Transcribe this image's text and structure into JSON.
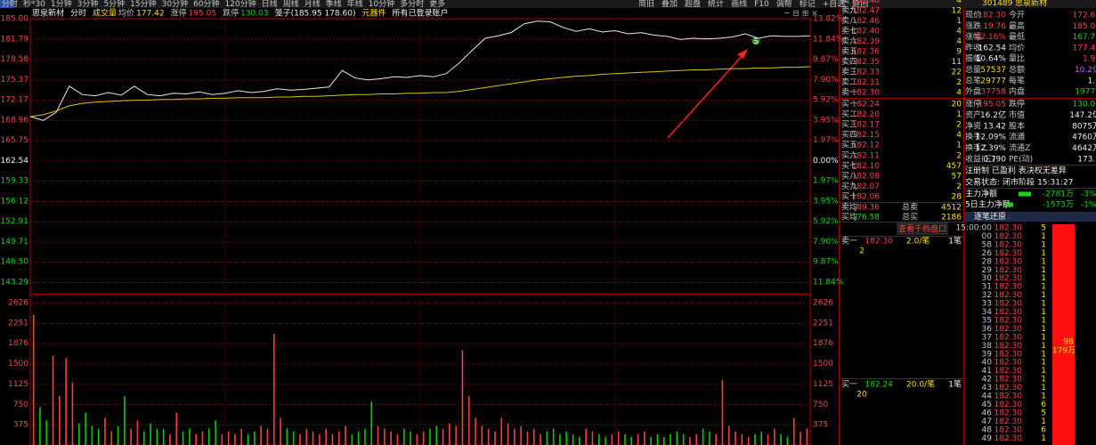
{
  "toolbar": {
    "tabs": [
      "分时",
      "秒*30",
      "1分钟",
      "3分钟",
      "5分钟",
      "15分钟",
      "30分钟",
      "60分钟",
      "120分钟",
      "日线",
      "周线",
      "月线",
      "季线",
      "年线",
      "10分钟",
      "多分时",
      "更多"
    ],
    "buttons": [
      "简旧",
      "叠加",
      "超盘",
      "统计",
      "画线",
      "F10",
      "调帮",
      "标记",
      "+自选",
      "返回"
    ]
  },
  "chart_header": {
    "stock": "思泉新材",
    "mode": "分时",
    "volume_label": "成交量",
    "avg_label": "均价",
    "avg": "177.42",
    "up_label": "涨停",
    "up": "195.05",
    "down_label": "跌停",
    "down": "130.03",
    "cage": "笼子(185.95 178.60)",
    "sector": "元器件",
    "account": "所有已登录账户"
  },
  "chart_data": [
    {
      "type": "line",
      "signal": "S",
      "series": [
        {
          "color": "#e8e8e8",
          "values": [
            169.5,
            168.9,
            170.2,
            174.3,
            173.0,
            172.8,
            173.3,
            172.9,
            174.3,
            173.0,
            172.8,
            173.2,
            173.1,
            173.4,
            173.0,
            173.2,
            173.6,
            173.3,
            173.5,
            173.9,
            173.7,
            173.8,
            174.0,
            174.2,
            176.8,
            175.6,
            175.3,
            175.5,
            175.8,
            175.7,
            176.0,
            175.8,
            176.3,
            178.0,
            180.0,
            181.9,
            182.3,
            182.8,
            184.2,
            184.6,
            184.5,
            183.6,
            183.0,
            183.4,
            182.9,
            183.1,
            182.6,
            182.8,
            182.4,
            182.2,
            181.7,
            181.9,
            181.8,
            181.9,
            182.1,
            182.6,
            181.9,
            182.3,
            182.2,
            182.2,
            182.3
          ]
        },
        {
          "color": "#d8c800",
          "values": [
            169.5,
            169.8,
            170.4,
            171.2,
            171.6,
            171.8,
            171.9,
            172.0,
            172.1,
            172.1,
            172.2,
            172.2,
            172.3,
            172.3,
            172.4,
            172.4,
            172.5,
            172.5,
            172.5,
            172.6,
            172.6,
            172.7,
            172.7,
            172.8,
            172.9,
            173.0,
            173.0,
            173.1,
            173.1,
            173.2,
            173.2,
            173.3,
            173.3,
            173.5,
            173.8,
            174.1,
            174.4,
            174.7,
            175.0,
            175.3,
            175.5,
            175.7,
            175.9,
            176.0,
            176.2,
            176.3,
            176.4,
            176.5,
            176.6,
            176.7,
            176.8,
            176.9,
            176.9,
            177.0,
            177.1,
            177.1,
            177.2,
            177.2,
            177.3,
            177.3,
            177.4
          ]
        }
      ],
      "ylim": [
        141.46,
        185.0
      ],
      "yticks": [
        {
          "value": 185.0,
          "label": "185.00"
        },
        181.79,
        178.58,
        175.37,
        172.17,
        168.96,
        165.75,
        162.54,
        159.33,
        156.12,
        152.91,
        149.71,
        {
          "value": 146.5,
          "label": "146.50"
        },
        143.29
      ],
      "y2lim": [
        -12.97,
        13.82
      ],
      "y2ticks": [
        {
          "value": 13.82,
          "label": "13.82%"
        },
        {
          "value": 11.84,
          "label": "11.84%"
        },
        {
          "value": 9.87,
          "label": "9.87%"
        },
        {
          "value": 7.9,
          "label": "7.90%"
        },
        {
          "value": 5.92,
          "label": "5.92%"
        },
        {
          "value": 3.95,
          "label": "3.95%"
        },
        {
          "value": 1.97,
          "label": "1.97%"
        },
        {
          "value": 0,
          "label": "0.00%"
        },
        {
          "value": -1.97,
          "label": "1.97%"
        },
        {
          "value": -3.95,
          "label": "3.95%"
        },
        {
          "value": -5.92,
          "label": "5.92%"
        },
        {
          "value": -7.9,
          "label": "7.90%"
        },
        {
          "value": -9.87,
          "label": "9.87%"
        },
        {
          "value": -11.84,
          "label": "11.84%"
        }
      ],
      "grid": true
    },
    {
      "type": "bar",
      "up_color": "#ff3c3c",
      "down_color": "#00d000",
      "values": [
        2400,
        700,
        450,
        1650,
        900,
        1600,
        1150,
        400,
        600,
        350,
        300,
        500,
        250,
        350,
        900,
        300,
        450,
        250,
        400,
        300,
        300,
        200,
        600,
        250,
        300,
        200,
        250,
        300,
        450,
        200,
        250,
        200,
        300,
        200,
        250,
        350,
        300,
        2050,
        500,
        300,
        250,
        200,
        300,
        250,
        200,
        300,
        200,
        250,
        350,
        200,
        250,
        300,
        800,
        350,
        300,
        250,
        200,
        300,
        250,
        200,
        250,
        300,
        350,
        300,
        400,
        350,
        1750,
        900,
        500,
        350,
        300,
        250,
        500,
        400,
        300,
        350,
        250,
        300,
        200,
        250,
        300,
        200,
        250,
        200,
        150,
        300,
        250,
        200,
        150,
        200,
        250,
        200,
        150,
        200,
        250,
        150,
        200,
        150,
        200,
        250,
        200,
        150,
        200,
        300,
        250,
        200,
        1200,
        350,
        250,
        200,
        150,
        200,
        250,
        200,
        300,
        200,
        150,
        500,
        250,
        300
      ],
      "ylim": [
        0,
        2790
      ],
      "yticks": [
        2626,
        2251,
        1876,
        1500,
        1125,
        750,
        375
      ],
      "grid": true
    }
  ],
  "order_book": {
    "sell": [
      [
        "卖十",
        "182.48",
        "4"
      ],
      [
        "卖九",
        "182.47",
        "12"
      ],
      [
        "卖八",
        "182.46",
        "1"
      ],
      [
        "卖七",
        "182.40",
        "4"
      ],
      [
        "卖六",
        "182.39",
        "4"
      ],
      [
        "卖五",
        "182.36",
        "9"
      ],
      [
        "卖四",
        "182.35",
        "11"
      ],
      [
        "卖三",
        "182.33",
        "22"
      ],
      [
        "卖二",
        "182.31",
        "2"
      ],
      [
        "卖一",
        "182.30",
        "4"
      ]
    ],
    "buy": [
      [
        "买一",
        "182.24",
        "20"
      ],
      [
        "买二",
        "182.20",
        "1"
      ],
      [
        "买三",
        "182.17",
        "2"
      ],
      [
        "买四",
        "182.15",
        "4"
      ],
      [
        "买五",
        "182.12",
        "1"
      ],
      [
        "买六",
        "182.11",
        "2"
      ],
      [
        "买七",
        "182.10",
        "457"
      ],
      [
        "买八",
        "182.08",
        "57"
      ],
      [
        "买九",
        "182.07",
        "2"
      ],
      [
        "买十",
        "182.06",
        "28"
      ]
    ],
    "summary": [
      [
        "卖均",
        "189.36",
        "总卖",
        "4512"
      ],
      [
        "买均",
        "176.58",
        "总买",
        "2186"
      ]
    ]
  },
  "queue": {
    "button": "查看千档盘口",
    "sell": {
      "label": "卖一",
      "price": "182.30",
      "avg": "2.0/笔",
      "count": "1笔",
      "orders": [
        "2"
      ]
    },
    "buy": {
      "label": "买一",
      "price": "182.24",
      "avg": "20.0/笔",
      "count": "1笔",
      "orders": [
        "20"
      ]
    }
  },
  "quote": {
    "code": "301489",
    "name": "思泉新材",
    "rows": [
      [
        "现价",
        "182.30",
        "今开",
        "172.65"
      ],
      [
        "涨跌",
        "19.76",
        "最高",
        "185.00"
      ],
      [
        "涨幅",
        "12.16%",
        "最低",
        "167.70"
      ],
      [
        "昨收",
        "162.54",
        "均价",
        "177.42"
      ],
      [
        "振幅",
        "10.64%",
        "量比",
        "1.96"
      ],
      [
        "总量",
        "57537",
        "总额",
        "10.2亿"
      ],
      [
        "总笔",
        "29777",
        "每笔",
        "1.9"
      ],
      [
        "外盘",
        "37758",
        "内盘",
        "19779"
      ],
      [
        "涨停",
        "195.05",
        "跌停",
        "130.03"
      ],
      [
        "资产",
        "16.2亿",
        "市值",
        "147.2亿"
      ],
      [
        "净资",
        "13.42",
        "股本",
        "8075万"
      ],
      [
        "换手",
        "12.09%",
        "流通",
        "4760万"
      ],
      [
        "换手Z",
        "12.39%",
        "流通Z",
        "4642万"
      ],
      [
        "收益(三)",
        "0.790",
        "PE(动)",
        "173.9"
      ]
    ],
    "tags": "注册制 已盈利 表决权无差异",
    "status_label": "交易状态:",
    "status": "闭市阶段",
    "status_time": "15:31:27",
    "flows": [
      [
        "主力净额",
        "-2781万",
        "-3%"
      ],
      [
        "5日主力净额",
        "-1573万",
        "-1%"
      ]
    ]
  },
  "trades": {
    "title": "逐笔还原",
    "rows": [
      [
        "15:00:00",
        "182.30",
        "5"
      ],
      [
        "00",
        "182.30",
        "1"
      ],
      [
        "58",
        "182.30",
        "1"
      ],
      [
        "26",
        "182.30",
        "1"
      ],
      [
        "28",
        "182.30",
        "1"
      ],
      [
        "29",
        "182.30",
        "1"
      ],
      [
        "30",
        "182.30",
        "1"
      ],
      [
        "31",
        "182.30",
        "1"
      ],
      [
        "32",
        "182.30",
        "1"
      ],
      [
        "33",
        "182.30",
        "1"
      ],
      [
        "34",
        "182.30",
        "1"
      ],
      [
        "35",
        "182.30",
        "1"
      ],
      [
        "36",
        "182.30",
        "1"
      ],
      [
        "37",
        "182.30",
        "1"
      ],
      [
        "38",
        "182.30",
        "1"
      ],
      [
        "39",
        "182.30",
        "1"
      ],
      [
        "40",
        "182.30",
        "1"
      ],
      [
        "41",
        "182.30",
        "1"
      ],
      [
        "42",
        "182.30",
        "1"
      ],
      [
        "43",
        "182.30",
        "1"
      ],
      [
        "44",
        "182.30",
        "1"
      ],
      [
        "45",
        "182.30",
        "6"
      ],
      [
        "46",
        "182.30",
        "5"
      ],
      [
        "47",
        "182.30",
        "1"
      ],
      [
        "48",
        "182.30",
        "6"
      ],
      [
        "49",
        "182.30",
        "1"
      ]
    ],
    "block": [
      "98",
      "179万"
    ]
  }
}
